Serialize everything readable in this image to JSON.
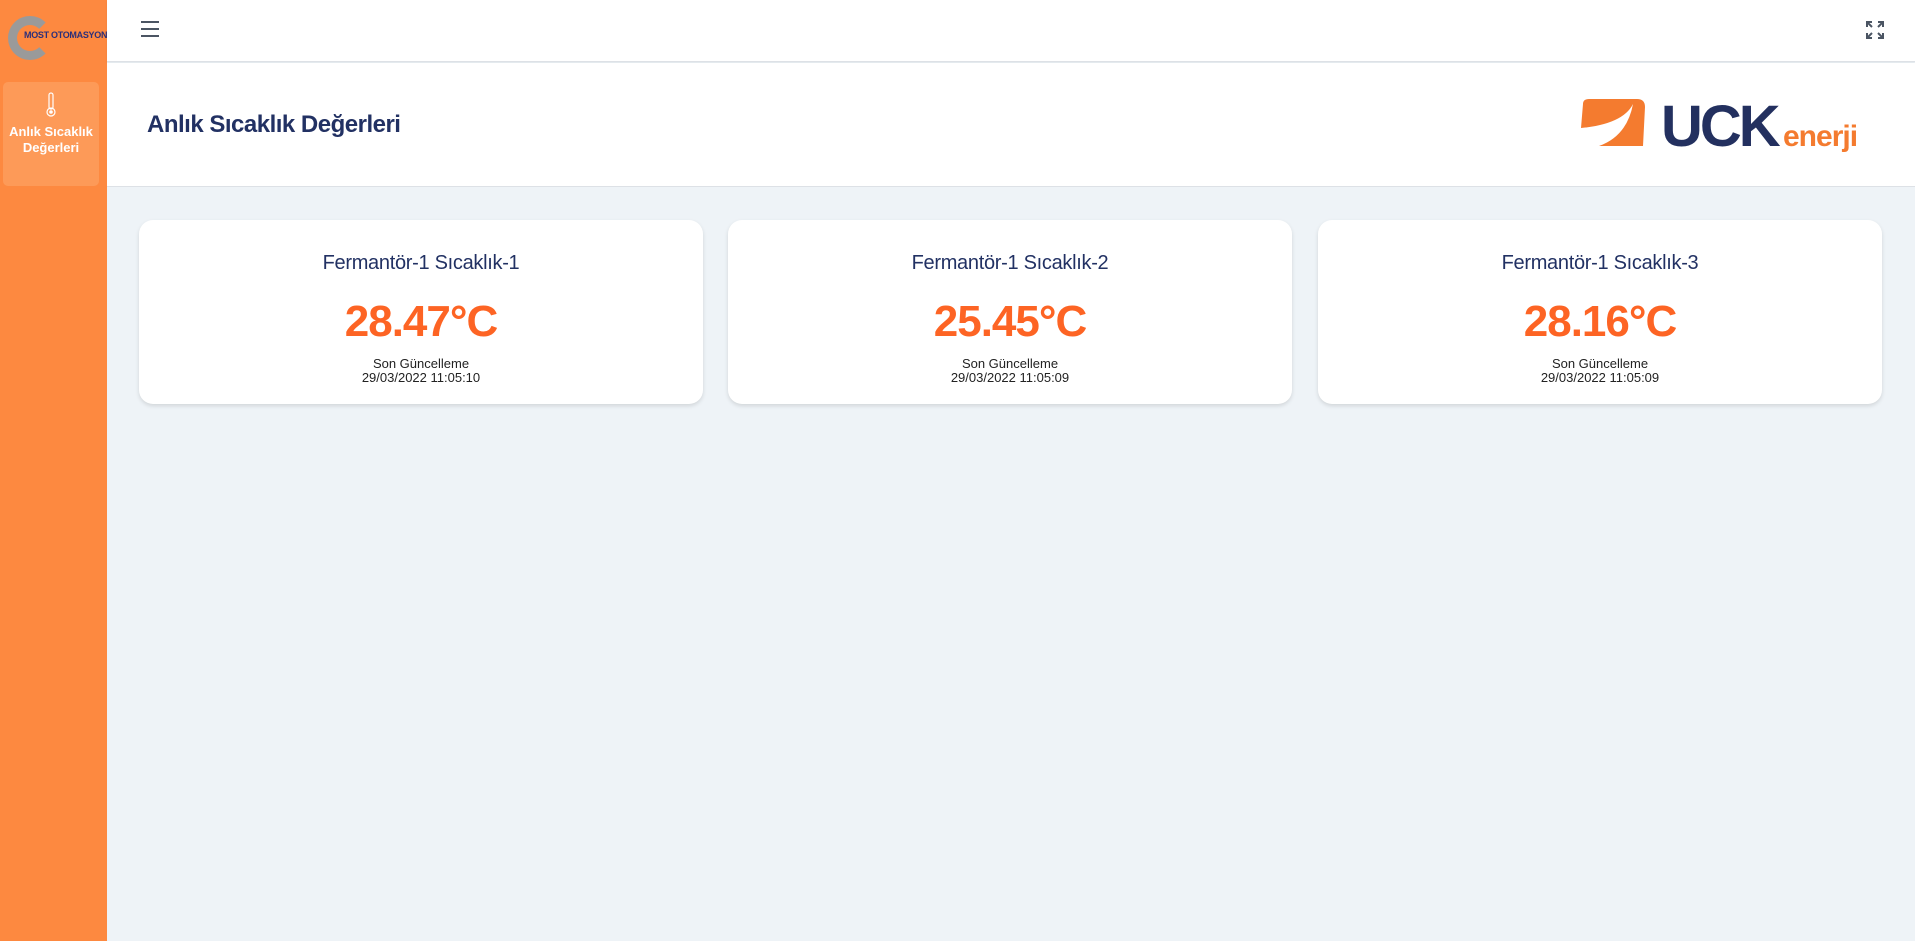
{
  "sidebar": {
    "logo_text": "MOST OTOMASYON",
    "items": [
      {
        "label": "Anlık Sıcaklık Değerleri",
        "icon": "thermometer-icon"
      }
    ]
  },
  "header": {
    "menu_icon": "hamburger-icon",
    "fullscreen_icon": "fullscreen-icon"
  },
  "page": {
    "title": "Anlık Sıcaklık Değerleri",
    "brand_logo": "UCK enerji",
    "brand_main": "UCK",
    "brand_sub": "enerji"
  },
  "colors": {
    "sidebar": "#fd8940",
    "accent": "#fd6424",
    "navy": "#223163"
  },
  "cards": [
    {
      "title": "Fermantör-1 Sıcaklık-1",
      "value": "28.47°C",
      "updated_label": "Son Güncelleme",
      "updated": "29/03/2022 11:05:10"
    },
    {
      "title": "Fermantör-1 Sıcaklık-2",
      "value": "25.45°C",
      "updated_label": "Son Güncelleme",
      "updated": "29/03/2022 11:05:09"
    },
    {
      "title": "Fermantör-1 Sıcaklık-3",
      "value": "28.16°C",
      "updated_label": "Son Güncelleme",
      "updated": "29/03/2022 11:05:09"
    }
  ]
}
